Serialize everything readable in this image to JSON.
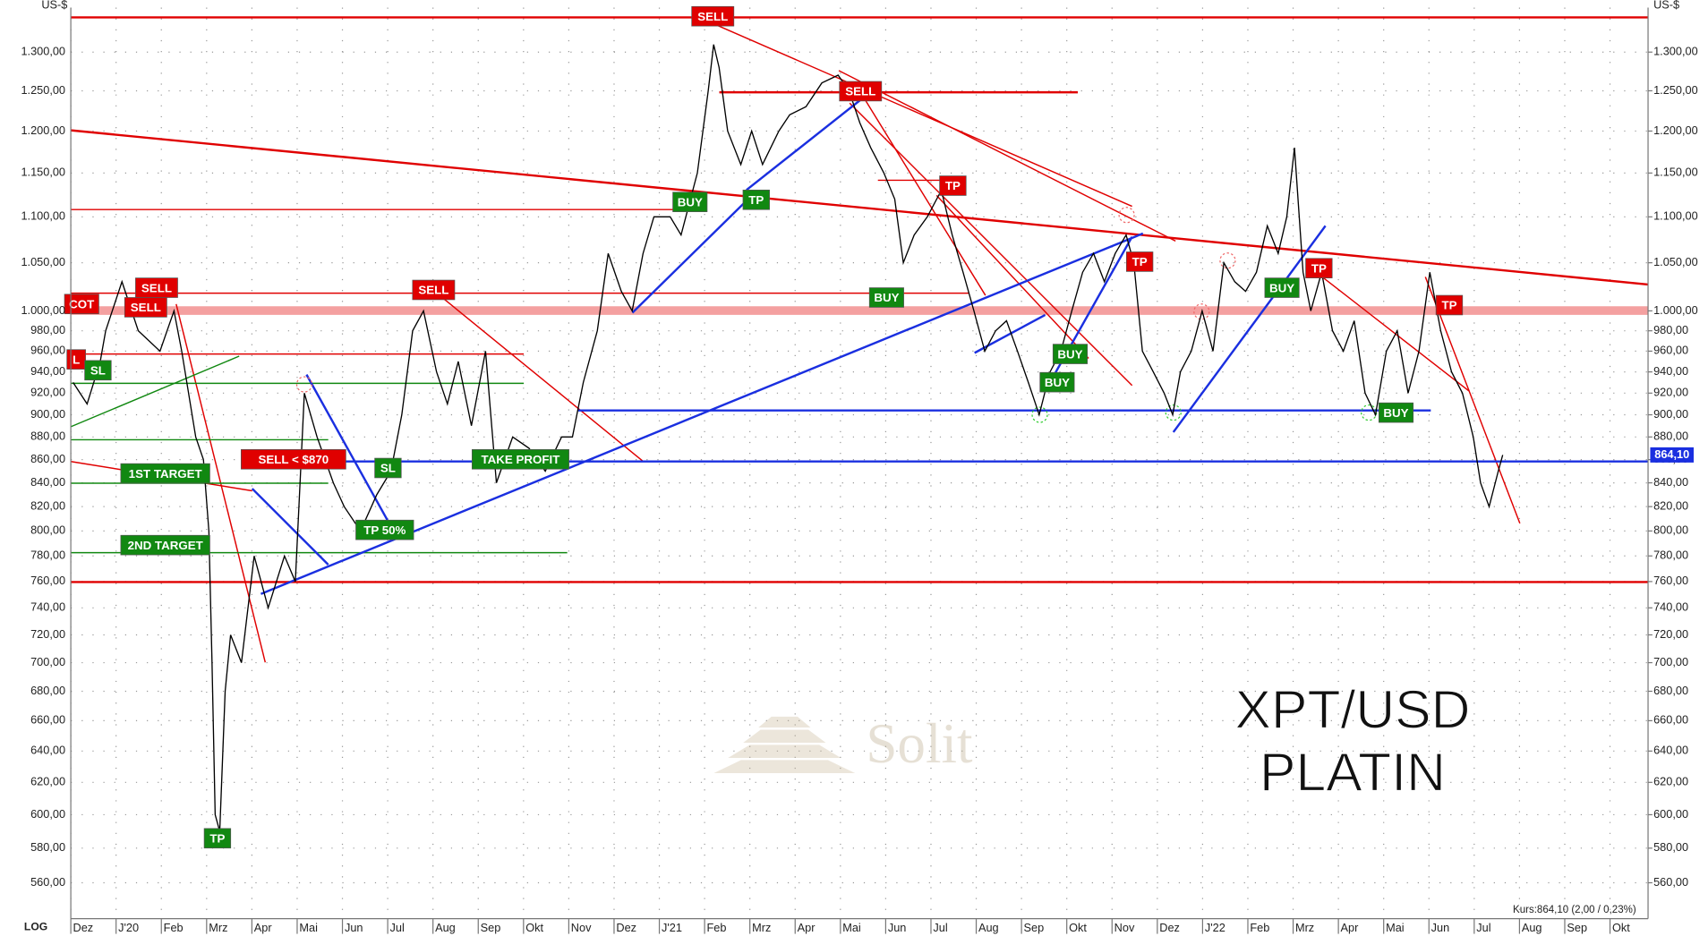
{
  "chart_data": {
    "type": "line",
    "title": "XPT/USD",
    "subtitle": "PLATIN",
    "y_label": "US-$",
    "scale_label": "LOG",
    "footer": "Kurs:864,10 (2,00 / 0,23%)",
    "watermark": "Solit",
    "log_scale": true,
    "grid": true,
    "last_price": {
      "value": 864.1,
      "label": "864,10"
    },
    "xlim": [
      0,
      34.84
    ],
    "ylim": [
      540,
      1360
    ],
    "xticks": [
      {
        "value": 0,
        "label": "Dez"
      },
      {
        "value": 1,
        "label": "J'20"
      },
      {
        "value": 2,
        "label": "Feb"
      },
      {
        "value": 3,
        "label": "Mrz"
      },
      {
        "value": 4,
        "label": "Apr"
      },
      {
        "value": 5,
        "label": "Mai"
      },
      {
        "value": 6,
        "label": "Jun"
      },
      {
        "value": 7,
        "label": "Jul"
      },
      {
        "value": 8,
        "label": "Aug"
      },
      {
        "value": 9,
        "label": "Sep"
      },
      {
        "value": 10,
        "label": "Okt"
      },
      {
        "value": 11,
        "label": "Nov"
      },
      {
        "value": 12,
        "label": "Dez"
      },
      {
        "value": 13,
        "label": "J'21"
      },
      {
        "value": 14,
        "label": "Feb"
      },
      {
        "value": 15,
        "label": "Mrz"
      },
      {
        "value": 16,
        "label": "Apr"
      },
      {
        "value": 17,
        "label": "Mai"
      },
      {
        "value": 18,
        "label": "Jun"
      },
      {
        "value": 19,
        "label": "Jul"
      },
      {
        "value": 20,
        "label": "Aug"
      },
      {
        "value": 21,
        "label": "Sep"
      },
      {
        "value": 22,
        "label": "Okt"
      },
      {
        "value": 23,
        "label": "Nov"
      },
      {
        "value": 24,
        "label": "Dez"
      },
      {
        "value": 25,
        "label": "J'22"
      },
      {
        "value": 26,
        "label": "Feb"
      },
      {
        "value": 27,
        "label": "Mrz"
      },
      {
        "value": 28,
        "label": "Apr"
      },
      {
        "value": 29,
        "label": "Mai"
      },
      {
        "value": 30,
        "label": "Jun"
      },
      {
        "value": 31,
        "label": "Jul"
      },
      {
        "value": 32,
        "label": "Aug"
      },
      {
        "value": 33,
        "label": "Sep"
      },
      {
        "value": 34,
        "label": "Okt"
      }
    ],
    "yticks": [
      {
        "value": 560,
        "label": "560,00"
      },
      {
        "value": 580,
        "label": "580,00"
      },
      {
        "value": 600,
        "label": "600,00"
      },
      {
        "value": 620,
        "label": "620,00"
      },
      {
        "value": 640,
        "label": "640,00"
      },
      {
        "value": 660,
        "label": "660,00"
      },
      {
        "value": 680,
        "label": "680,00"
      },
      {
        "value": 700,
        "label": "700,00"
      },
      {
        "value": 720,
        "label": "720,00"
      },
      {
        "value": 740,
        "label": "740,00"
      },
      {
        "value": 760,
        "label": "760,00"
      },
      {
        "value": 780,
        "label": "780,00"
      },
      {
        "value": 800,
        "label": "800,00"
      },
      {
        "value": 820,
        "label": "820,00"
      },
      {
        "value": 840,
        "label": "840,00"
      },
      {
        "value": 860,
        "label": "860,00"
      },
      {
        "value": 880,
        "label": "880,00"
      },
      {
        "value": 900,
        "label": "900,00"
      },
      {
        "value": 920,
        "label": "920,00"
      },
      {
        "value": 940,
        "label": "940,00"
      },
      {
        "value": 960,
        "label": "960,00"
      },
      {
        "value": 980,
        "label": "980,00"
      },
      {
        "value": 1000,
        "label": "1.000,00"
      },
      {
        "value": 1050,
        "label": "1.050,00"
      },
      {
        "value": 1100,
        "label": "1.100,00"
      },
      {
        "value": 1150,
        "label": "1.150,00"
      },
      {
        "value": 1200,
        "label": "1.200,00"
      },
      {
        "value": 1250,
        "label": "1.250,00"
      },
      {
        "value": 1300,
        "label": "1.300,00"
      }
    ],
    "series": [
      {
        "color": "#000000",
        "x": [
          0.05,
          0.36,
          0.65,
          0.77,
          1.13,
          1.49,
          1.97,
          2.28,
          2.45,
          2.76,
          2.93,
          3.05,
          3.12,
          3.19,
          3.29,
          3.41,
          3.53,
          3.77,
          4.05,
          4.36,
          4.72,
          4.96,
          5.16,
          5.44,
          5.8,
          6.04,
          6.4,
          6.76,
          7.07,
          7.31,
          7.55,
          7.79,
          8.08,
          8.32,
          8.56,
          8.85,
          9.16,
          9.4,
          9.76,
          10.12,
          10.48,
          10.84,
          11.08,
          11.32,
          11.63,
          11.87,
          12.16,
          12.4,
          12.64,
          12.88,
          13.24,
          13.48,
          13.84,
          14.08,
          14.2,
          14.32,
          14.51,
          14.8,
          15.04,
          15.28,
          15.64,
          15.88,
          16.24,
          16.59,
          16.95,
          17.19,
          17.43,
          17.67,
          17.96,
          18.2,
          18.39,
          18.63,
          18.92,
          19.23,
          19.47,
          19.71,
          19.95,
          20.19,
          20.43,
          20.67,
          20.91,
          21.15,
          21.39,
          21.63,
          21.87,
          22.11,
          22.35,
          22.59,
          22.83,
          23.07,
          23.31,
          23.48,
          23.67,
          23.91,
          24.15,
          24.34,
          24.51,
          24.75,
          24.99,
          25.23,
          25.47,
          25.71,
          25.95,
          26.19,
          26.43,
          26.67,
          26.86,
          27.03,
          27.22,
          27.39,
          27.63,
          27.87,
          28.11,
          28.35,
          28.59,
          28.82,
          29.06,
          29.3,
          29.54,
          29.78,
          30.02,
          30.26,
          30.5,
          30.74,
          30.98,
          31.14,
          31.33,
          31.53,
          31.63
        ],
        "values": [
          930,
          910,
          950,
          980,
          1030,
          980,
          960,
          1000,
          960,
          880,
          860,
          800,
          700,
          600,
          590,
          680,
          720,
          700,
          780,
          740,
          780,
          760,
          920,
          880,
          840,
          820,
          800,
          830,
          850,
          900,
          980,
          1000,
          940,
          910,
          950,
          890,
          960,
          840,
          880,
          870,
          850,
          880,
          880,
          930,
          980,
          1060,
          1020,
          1000,
          1060,
          1100,
          1100,
          1080,
          1150,
          1250,
          1310,
          1280,
          1200,
          1160,
          1200,
          1160,
          1200,
          1220,
          1230,
          1260,
          1270,
          1250,
          1210,
          1180,
          1150,
          1120,
          1050,
          1080,
          1100,
          1130,
          1080,
          1040,
          1000,
          960,
          980,
          990,
          960,
          930,
          900,
          940,
          960,
          1000,
          1040,
          1060,
          1030,
          1060,
          1080,
          1050,
          960,
          940,
          920,
          900,
          940,
          960,
          1000,
          960,
          1050,
          1030,
          1020,
          1040,
          1090,
          1060,
          1100,
          1180,
          1040,
          1000,
          1040,
          980,
          960,
          990,
          920,
          900,
          960,
          980,
          920,
          960,
          1040,
          980,
          940,
          920,
          880,
          840,
          820,
          850,
          864.1
        ]
      }
    ],
    "annotations": [
      {
        "text": "SELL",
        "color": "#e00000"
      },
      {
        "text": "SELL",
        "color": "#e00000"
      },
      {
        "text": "TP",
        "color": "#e00000"
      },
      {
        "text": "BUY",
        "color": "#118811"
      },
      {
        "text": "TP",
        "color": "#118811"
      },
      {
        "text": "BUY",
        "color": "#118811"
      },
      {
        "text": "SELL",
        "color": "#e00000"
      },
      {
        "text": "SELL",
        "color": "#e00000"
      },
      {
        "text": "SELL",
        "color": "#e00000"
      },
      {
        "text": "COT",
        "color": "#e00000"
      },
      {
        "text": "L",
        "color": "#e00000"
      },
      {
        "text": "SL",
        "color": "#118811"
      },
      {
        "text": "1ST TARGET",
        "color": "#118811"
      },
      {
        "text": "2ND TARGET",
        "color": "#118811"
      },
      {
        "text": "SELL <  $870",
        "color": "#e00000"
      },
      {
        "text": "SL",
        "color": "#118811"
      },
      {
        "text": "TP 50%",
        "color": "#118811"
      },
      {
        "text": "TAKE PROFIT",
        "color": "#118811"
      },
      {
        "text": "TP",
        "color": "#118811"
      },
      {
        "text": "TP",
        "color": "#e00000"
      },
      {
        "text": "BUY",
        "color": "#118811"
      },
      {
        "text": "TP",
        "color": "#e00000"
      },
      {
        "text": "TP",
        "color": "#e00000"
      },
      {
        "text": "BUY",
        "color": "#118811"
      },
      {
        "text": "BUY",
        "color": "#118811"
      },
      {
        "text": "BUY",
        "color": "#118811"
      }
    ]
  }
}
